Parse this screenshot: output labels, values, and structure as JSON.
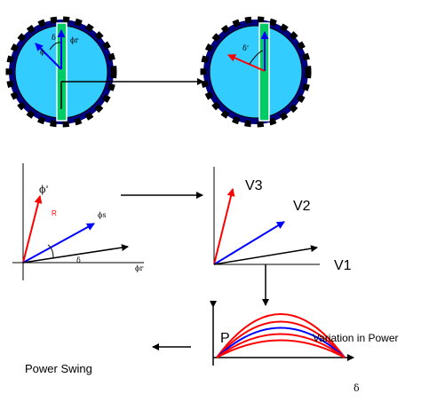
{
  "rotor_left": {
    "label_delta": "δ",
    "label_phi_r": "ϕr",
    "label_phi": "ϕ"
  },
  "rotor_right": {
    "label_delta_prime": "δ'"
  },
  "phasor_left": {
    "label_phi_prime": "ϕ'",
    "label_red_vector": "R",
    "label_phi_s": "ϕs",
    "label_delta": "δ",
    "label_phi_r": "ϕr"
  },
  "phasor_right": {
    "label_v3": "V3",
    "label_v2": "V2",
    "label_v1": "V1"
  },
  "power_plot": {
    "ylabel": "P",
    "xlabel": "δ",
    "annotation": "Variation in Power",
    "caption": "Power Swing"
  },
  "colors": {
    "rotor_fill": "#33ccff",
    "rotor_ring": "#000080",
    "rotor_slot": "#00cc66",
    "red": "#ff0000",
    "blue": "#0000ff"
  }
}
